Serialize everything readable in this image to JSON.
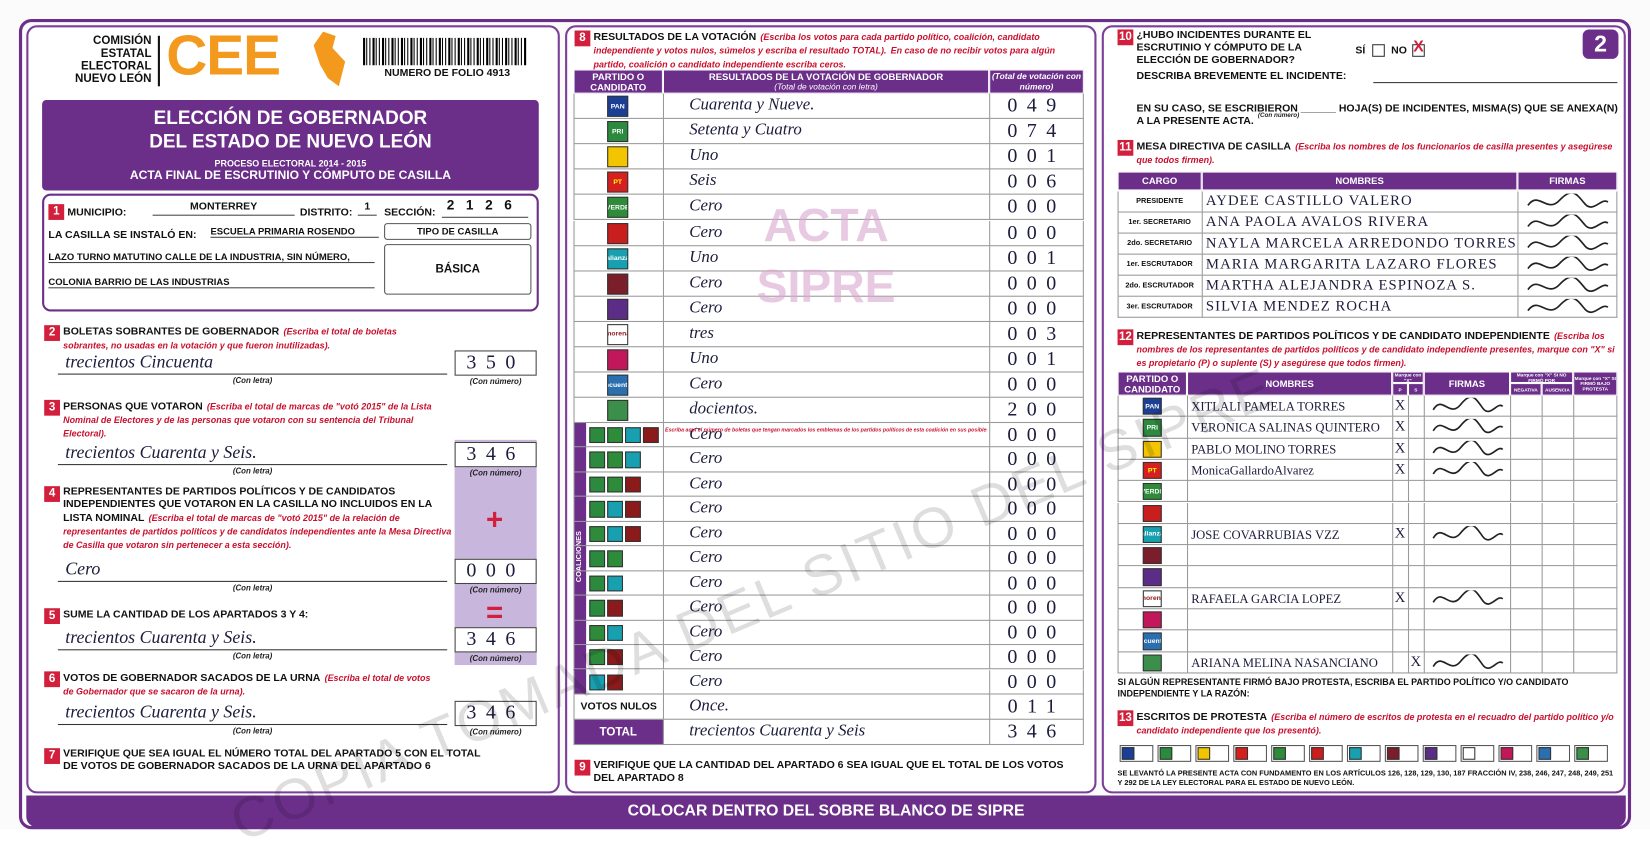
{
  "header": {
    "org": [
      "COMISIÓN",
      "ESTATAL",
      "ELECTORAL",
      "NUEVO LEÓN"
    ],
    "logo": "CEE",
    "folio": "NUMERO DE FOLIO 4913",
    "page": "2",
    "title": [
      "ELECCIÓN DE GOBERNADOR",
      "DEL ESTADO DE NUEVO LEÓN"
    ],
    "process": "PROCESO ELECTORAL 2014 - 2015",
    "subtitle": "ACTA FINAL DE ESCRUTINIO Y CÓMPUTO DE CASILLA"
  },
  "s1": {
    "num": "1",
    "municipio_label": "MUNICIPIO:",
    "municipio": "MONTERREY",
    "distrito_label": "DISTRITO:",
    "distrito": "1",
    "seccion_label": "SECCIÓN:",
    "seccion": "2126",
    "casilla_label": "LA CASILLA SE INSTALÓ EN:",
    "domicilio": [
      "ESCUELA PRIMARIA ROSENDO",
      "LAZO TURNO MATUTINO CALLE DE LA INDUSTRIA, SIN NÚMERO,",
      "COLONIA BARRIO DE LAS INDUSTRIAS"
    ],
    "tipo_label": "TIPO DE CASILLA",
    "tipo": "BÁSICA"
  },
  "s2": {
    "num": "2",
    "title": "BOLETAS SOBRANTES DE GOBERNADOR",
    "instr": "(Escriba el total de boletas sobrantes, no usadas en la votación y que fueron inutilizadas).",
    "letra": "trecientos Cincuenta",
    "numero": "350",
    "letra_caption": "(Con letra)",
    "numero_caption": "(Con número)"
  },
  "s3": {
    "num": "3",
    "title": "PERSONAS QUE VOTARON",
    "instr": "(Escriba el total de marcas de \"votó 2015\" de la Lista Nominal de Electores y de las personas que votaron con su sentencia del Tribunal Electoral).",
    "letra": "trecientos Cuarenta y Seis.",
    "numero": "346",
    "letra_caption": "(Con letra)",
    "numero_caption": "(Con número)"
  },
  "s4": {
    "num": "4",
    "title": "REPRESENTANTES DE PARTIDOS POLÍTICOS Y DE CANDIDATOS INDEPENDIENTES QUE VOTARON EN LA CASILLA NO INCLUIDOS EN LA LISTA NOMINAL",
    "instr": "(Escriba el total de marcas de \"votó 2015\" de la relación de representantes de partidos políticos y de candidatos independientes ante la Mesa Directiva de Casilla que votaron sin pertenecer a esta sección).",
    "sign": "+",
    "letra": "Cero",
    "numero": "000",
    "letra_caption": "(Con letra)",
    "numero_caption": "(Con número)"
  },
  "s5": {
    "num": "5",
    "title": "SUME LA CANTIDAD DE LOS APARTADOS 3 Y 4:",
    "sign": "=",
    "letra": "trecientos Cuarenta y Seis.",
    "numero": "346",
    "letra_caption": "(Con letra)",
    "numero_caption": "(Con número)"
  },
  "s6": {
    "num": "6",
    "title": "VOTOS DE GOBERNADOR SACADOS DE LA URNA",
    "instr": "(Escriba el total de votos de Gobernador que se sacaron de la urna).",
    "letra": "trecientos Cuarenta y Seis.",
    "numero": "346",
    "letra_caption": "(Con letra)",
    "numero_caption": "(Con número)"
  },
  "s7": {
    "num": "7",
    "text": "VERIFIQUE QUE SEA IGUAL EL NÚMERO TOTAL DEL APARTADO 5 CON EL TOTAL DE VOTOS DE GOBERNADOR SACADOS DE LA URNA DEL APARTADO 6"
  },
  "s8": {
    "num": "8",
    "title": "RESULTADOS DE LA VOTACIÓN",
    "instr": "(Escriba los votos para cada partido político, coalición, candidato independiente y votos nulos, súmelos y escriba el resultado TOTAL).",
    "instr2": "En caso de no recibir votos para algún partido, coalición o candidato independiente escriba ceros.",
    "headers": [
      "PARTIDO O CANDIDATO",
      "RESULTADOS DE LA VOTACIÓN DE GOBERNADOR",
      "(Total de votación con número)"
    ],
    "sub": "(Total de votación con letra)",
    "rows": [
      {
        "logo": {
          "bg": "#1b3f94",
          "fg": "#fff",
          "label": "PAN"
        },
        "letra": "Cuarenta y Nueve.",
        "numero": "049"
      },
      {
        "logo": {
          "bg": "#2b8a3e",
          "fg": "#fff",
          "label": "PRI"
        },
        "letra": "Setenta y Cuatro",
        "numero": "074"
      },
      {
        "logo": {
          "bg": "#f3c500",
          "fg": "#000"
        },
        "letra": "Uno",
        "numero": "001"
      },
      {
        "logo": {
          "bg": "#d62020",
          "fg": "#ff0",
          "label": "PT"
        },
        "letra": "Seis",
        "numero": "006"
      },
      {
        "logo": {
          "bg": "#2e8b3a",
          "fg": "#fff",
          "label": "VERDE"
        },
        "letra": "Cero",
        "numero": "000"
      },
      {
        "logo": {
          "bg": "#c81e1e",
          "fg": "#fff"
        },
        "letra": "Cero",
        "numero": "000"
      },
      {
        "logo": {
          "bg": "#18a0b0",
          "fg": "#fff",
          "label": "alianza"
        },
        "letra": "Uno",
        "numero": "001"
      },
      {
        "logo": {
          "bg": "#7a1e2a",
          "fg": "#fff"
        },
        "letra": "Cero",
        "numero": "000"
      },
      {
        "logo": {
          "bg": "#5b2d86",
          "fg": "#fff"
        },
        "letra": "Cero",
        "numero": "000"
      },
      {
        "logo": {
          "bg": "#ffffff",
          "fg": "#8b1a1a",
          "label": "morena"
        },
        "letra": "tres",
        "numero": "003"
      },
      {
        "logo": {
          "bg": "#c2185b",
          "fg": "#fff"
        },
        "letra": "Uno",
        "numero": "001"
      },
      {
        "logo": {
          "bg": "#2a6fb0",
          "fg": "#fff",
          "label": "encuentro"
        },
        "letra": "Cero",
        "numero": "000"
      },
      {
        "logo": {
          "bg": "#3b8f4a",
          "fg": "#fff"
        },
        "letra": "docientos.",
        "numero": "200"
      }
    ],
    "coalition_label": "COALICIONES",
    "coalition_note": "Escriba aquí el número de boletas que tengan marcados los emblemas de los partidos políticos de esta coalición en sus posibles combinaciones.",
    "coalitions": [
      {
        "logos": [
          "#2b8a3e",
          "#2e8b3a",
          "#18a0b0",
          "#8b1a1a"
        ],
        "letra": "Cero",
        "numero": "000"
      },
      {
        "logos": [
          "#2b8a3e",
          "#2e8b3a",
          "#18a0b0"
        ],
        "letra": "Cero",
        "numero": "000"
      },
      {
        "logos": [
          "#2b8a3e",
          "#2e8b3a",
          "#8b1a1a"
        ],
        "letra": "Cero",
        "numero": "000"
      },
      {
        "logos": [
          "#2b8a3e",
          "#18a0b0",
          "#8b1a1a"
        ],
        "letra": "Cero",
        "numero": "000"
      },
      {
        "logos": [
          "#2e8b3a",
          "#18a0b0",
          "#8b1a1a"
        ],
        "letra": "Cero",
        "numero": "000"
      },
      {
        "logos": [
          "#2b8a3e",
          "#2e8b3a"
        ],
        "letra": "Cero",
        "numero": "000"
      },
      {
        "logos": [
          "#2b8a3e",
          "#18a0b0"
        ],
        "letra": "Cero",
        "numero": "000"
      },
      {
        "logos": [
          "#2b8a3e",
          "#8b1a1a"
        ],
        "letra": "Cero",
        "numero": "000"
      },
      {
        "logos": [
          "#2e8b3a",
          "#18a0b0"
        ],
        "letra": "Cero",
        "numero": "000"
      },
      {
        "logos": [
          "#2e8b3a",
          "#8b1a1a"
        ],
        "letra": "Cero",
        "numero": "000"
      },
      {
        "logos": [
          "#18a0b0",
          "#8b1a1a"
        ],
        "letra": "Cero",
        "numero": "000"
      }
    ],
    "nulos_label": "VOTOS NULOS",
    "nulos": {
      "letra": "Once.",
      "numero": "011"
    },
    "total_label": "TOTAL",
    "total": {
      "letra": "trecientos Cuarenta y Seis",
      "numero": "346"
    },
    "watermark": [
      "ACTA",
      "SIPRE"
    ]
  },
  "s9": {
    "num": "9",
    "text": "VERIFIQUE QUE LA CANTIDAD DEL APARTADO 6 SEA IGUAL QUE EL TOTAL DE LOS VOTOS DEL APARTADO 8"
  },
  "s10": {
    "num": "10",
    "question": "¿HUBO INCIDENTES DURANTE EL ESCRUTINIO Y CÓMPUTO DE LA ELECCIÓN DE GOBERNADOR?",
    "si": "SÍ",
    "no": "NO",
    "mark": "X",
    "describe": "DESCRIBA BREVEMENTE EL INCIDENTE:",
    "hojas": "EN SU CASO, SE ESCRIBIERON ______ HOJA(S) DE INCIDENTES, MISMA(S) QUE SE ANEXA(N) A LA PRESENTE ACTA.",
    "hojas_caption": "(Con número)"
  },
  "s11": {
    "num": "11",
    "title": "MESA DIRECTIVA DE CASILLA",
    "instr": "(Escriba los nombres de los funcionarios de casilla presentes y asegúrese que todos firmen).",
    "headers": [
      "CARGO",
      "NOMBRES",
      "FIRMAS"
    ],
    "rows": [
      {
        "cargo": "PRESIDENTE",
        "nombre": "AYDEE CASTILLO VALERO"
      },
      {
        "cargo": "1er. SECRETARIO",
        "nombre": "ANA PAOLA AVALOS RIVERA"
      },
      {
        "cargo": "2do. SECRETARIO",
        "nombre": "NAYLA MARCELA ARREDONDO TORRES"
      },
      {
        "cargo": "1er. ESCRUTADOR",
        "nombre": "MARIA MARGARITA LAZARO FLORES"
      },
      {
        "cargo": "2do. ESCRUTADOR",
        "nombre": "MARTHA ALEJANDRA ESPINOZA S."
      },
      {
        "cargo": "3er. ESCRUTADOR",
        "nombre": "SILVIA MENDEZ ROCHA"
      }
    ]
  },
  "s12": {
    "num": "12",
    "title": "REPRESENTANTES DE PARTIDOS POLÍTICOS Y DE CANDIDATO INDEPENDIENTE",
    "instr": "(Escriba los nombres de los representantes de partidos políticos y de candidato independiente presentes, marque con \"X\" si es propietario (P) o suplente (S) y asegúrese que todos firmen).",
    "headers": [
      "PARTIDO O CANDIDATO",
      "NOMBRES",
      "Marque con \"X\"",
      "P",
      "S",
      "FIRMAS",
      "Marque con \"X\" SI NO FIRMÓ POR",
      "NEGATIVA",
      "AUSENCIA",
      "Marque con \"X\" SI FIRMÓ BAJO PROTESTA"
    ],
    "rows": [
      {
        "nombre": "XITLALI PAMELA TORRES",
        "p": "X"
      },
      {
        "nombre": "VERONICA SALINAS QUINTERO",
        "p": "X"
      },
      {
        "nombre": "PABLO MOLINO TORRES",
        "p": "X"
      },
      {
        "nombre": "MonicaGallardoAlvarez",
        "p": "X"
      },
      null,
      null,
      {
        "nombre": "JOSE COVARRUBIAS VZZ",
        "p": "X"
      },
      null,
      null,
      {
        "nombre": "RAFAELA GARCIA LOPEZ",
        "p": "X"
      },
      null,
      null,
      {
        "nombre": "ARIANA MELINA NASANCIANO",
        "s": "X"
      }
    ],
    "note": "SI ALGÚN REPRESENTANTE FIRMÓ BAJO PROTESTA, ESCRIBA EL PARTIDO POLÍTICO Y/O CANDIDATO INDEPENDIENTE Y LA RAZÓN:"
  },
  "s13": {
    "num": "13",
    "title": "ESCRITOS DE PROTESTA",
    "instr": "(Escriba el número de escritos de protesta en el recuadro del partido político y/o candidato independiente que los presentó).",
    "legal": "SE LEVANTÓ LA PRESENTE ACTA CON FUNDAMENTO EN LOS ARTÍCULOS 126, 128, 129, 130, 187 FRACCIÓN IV, 238, 246, 247, 248, 249, 251 Y 292 DE LA LEY ELECTORAL PARA EL ESTADO DE NUEVO LEÓN."
  },
  "footer": "COLOCAR DENTRO DEL SOBRE BLANCO DE SIPRE",
  "watermark": "COPIA TOMADA DEL SITIO DEL SIPRE"
}
